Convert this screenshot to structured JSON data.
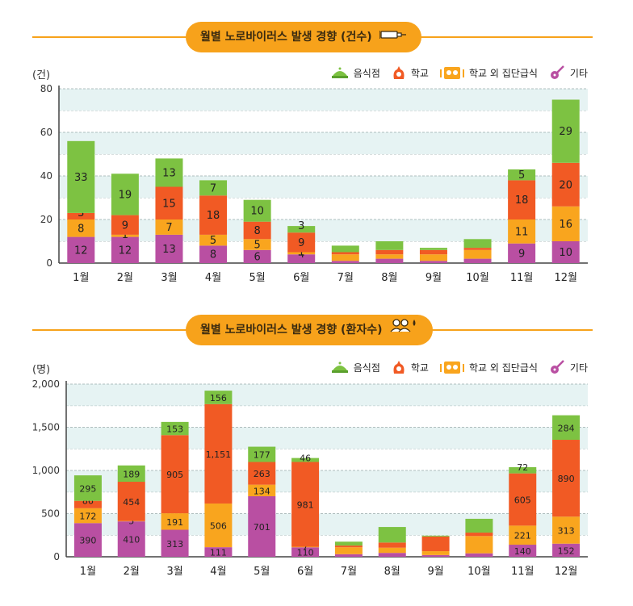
{
  "chart_data": [
    {
      "type": "bar",
      "stacked": true,
      "title": "월별 노로바이러스 발생 경향 (건수)",
      "unit_label": "(건)",
      "categories": [
        "1월",
        "2월",
        "3월",
        "4월",
        "5월",
        "6월",
        "7월",
        "8월",
        "9월",
        "10월",
        "11월",
        "12월"
      ],
      "ylim": [
        0,
        80
      ],
      "yticks": [
        0,
        20,
        40,
        60,
        80
      ],
      "ytick_labels": [
        "0",
        "20",
        "40",
        "60",
        "80"
      ],
      "series": [
        {
          "name": "기타",
          "color": "#b94fa2",
          "values": [
            12,
            12,
            13,
            8,
            6,
            4,
            1,
            2,
            1,
            2,
            9,
            10
          ],
          "labels": [
            "12",
            "12",
            "13",
            "8",
            "6",
            "4",
            "",
            "",
            "",
            "",
            "9",
            "10"
          ]
        },
        {
          "name": "학교 외 집단급식",
          "color": "#f9a51e",
          "values": [
            8,
            1,
            7,
            5,
            5,
            1,
            3,
            2,
            3,
            4,
            11,
            16
          ],
          "labels": [
            "8",
            "1",
            "7",
            "5",
            "5",
            "1",
            "",
            "",
            "",
            "",
            "11",
            "16"
          ]
        },
        {
          "name": "학교",
          "color": "#f15a24",
          "values": [
            3,
            9,
            15,
            18,
            8,
            9,
            1,
            2,
            2,
            1,
            18,
            20
          ],
          "labels": [
            "3",
            "9",
            "15",
            "18",
            "8",
            "9",
            "",
            "",
            "",
            "",
            "18",
            "20"
          ]
        },
        {
          "name": "음식점",
          "color": "#7dc242",
          "values": [
            33,
            19,
            13,
            7,
            10,
            3,
            3,
            4,
            1,
            4,
            5,
            29
          ],
          "labels": [
            "33",
            "19",
            "13",
            "7",
            "10",
            "3",
            "",
            "",
            "",
            "",
            "5",
            "29"
          ]
        }
      ]
    },
    {
      "type": "bar",
      "stacked": true,
      "title": "월별 노로바이러스 발생 경향 (환자수)",
      "unit_label": "(명)",
      "categories": [
        "1월",
        "2월",
        "3월",
        "4월",
        "5월",
        "6월",
        "7월",
        "8월",
        "9월",
        "10월",
        "11월",
        "12월"
      ],
      "ylim": [
        0,
        2000
      ],
      "yticks": [
        0,
        500,
        1000,
        1500,
        2000
      ],
      "ytick_labels": [
        "0",
        "500",
        "1,000",
        "1,500",
        "2,000"
      ],
      "series": [
        {
          "name": "기타",
          "color": "#b94fa2",
          "values": [
            390,
            410,
            313,
            111,
            701,
            110,
            30,
            45,
            20,
            40,
            140,
            152
          ],
          "labels": [
            "390",
            "410",
            "313",
            "111",
            "701",
            "110",
            "",
            "",
            "",
            "",
            "140",
            "152"
          ]
        },
        {
          "name": "학교 외 집단급식",
          "color": "#f9a51e",
          "values": [
            172,
            5,
            191,
            506,
            134,
            7,
            80,
            60,
            45,
            200,
            221,
            313
          ],
          "labels": [
            "172",
            "5",
            "191",
            "506",
            "134",
            "7",
            "",
            "",
            "",
            "",
            "221",
            "313"
          ]
        },
        {
          "name": "학교",
          "color": "#f15a24",
          "values": [
            86,
            454,
            905,
            1151,
            263,
            981,
            20,
            60,
            170,
            40,
            605,
            890
          ],
          "labels": [
            "86",
            "454",
            "905",
            "1,151",
            "263",
            "981",
            "",
            "",
            "",
            "",
            "605",
            "890"
          ]
        },
        {
          "name": "음식점",
          "color": "#7dc242",
          "values": [
            295,
            189,
            153,
            156,
            177,
            46,
            45,
            180,
            10,
            160,
            72,
            284
          ],
          "labels": [
            "295",
            "189",
            "153",
            "156",
            "177",
            "46",
            "",
            "",
            "",
            "",
            "72",
            "284"
          ]
        }
      ]
    }
  ],
  "legend": [
    {
      "name": "음식점",
      "icon": "bowl-icon",
      "color": "#7dc242"
    },
    {
      "name": "학교",
      "icon": "school-bell-icon",
      "color": "#f15a24"
    },
    {
      "name": "학교 외 집단급식",
      "icon": "lunchbox-icon",
      "color": "#f9a51e"
    },
    {
      "name": "기타",
      "icon": "guitar-icon",
      "color": "#b94fa2"
    }
  ],
  "colors": {
    "accent": "#f7a21b",
    "band": "#e6f3f3"
  }
}
